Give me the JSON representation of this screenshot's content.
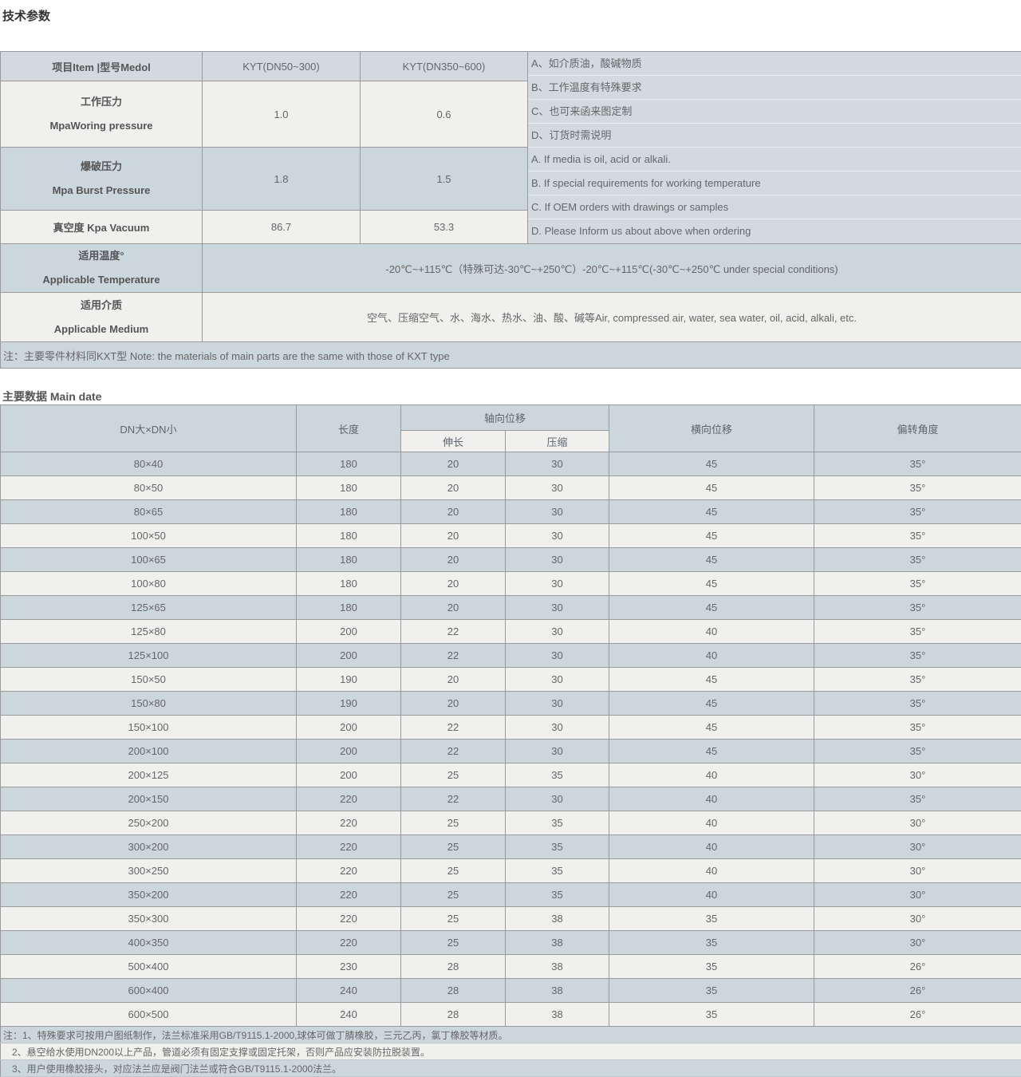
{
  "colors": {
    "row_blue": "#ccd6dd",
    "row_light": "#f0f0ee",
    "header_blue": "#d2dae0",
    "border": "#9a9a9a",
    "text": "#666666",
    "title": "#333333"
  },
  "tech_params": {
    "title": "技术参数",
    "header": {
      "item": "项目Item |型号Medol",
      "model1": "KYT(DN50~300)",
      "model2": "KYT(DN350~600)"
    },
    "rows": [
      {
        "label_cn": "工作压力",
        "label_en": "MpaWoring pressure",
        "v1": "1.0",
        "v2": "0.6"
      },
      {
        "label_cn": "爆破压力",
        "label_en": "Mpa Burst Pressure",
        "v1": "1.8",
        "v2": "1.5"
      },
      {
        "label": "真空度 Kpa Vacuum",
        "v1": "86.7",
        "v2": "53.3"
      }
    ],
    "notes_cn": [
      "A、如介质油，酸碱物质",
      "B、工作温度有特殊要求",
      "C、也可来函来图定制",
      "D、订货时需说明"
    ],
    "notes_en": [
      "A. If media is oil, acid or alkali.",
      "B. If special requirements for working temperature",
      "C. If OEM orders with drawings or samples",
      "D. Please Inform us about above when ordering"
    ],
    "temperature": {
      "label_cn": "适用温度°",
      "label_en": "Applicable Temperature",
      "value": "-20℃~+115℃（特殊可达-30℃~+250℃）-20℃~+115℃(-30℃~+250℃ under special conditions)"
    },
    "medium": {
      "label_cn": "适用介质",
      "label_en": "Applicable Medium",
      "value": "空气、压缩空气、水、海水、热水、油、酸、碱等Air, compressed air, water, sea water, oil, acid, alkali, etc."
    },
    "footer_note": "注：主要零件材料同KXT型 Note: the materials of main parts are the same with those of KXT type"
  },
  "main_data": {
    "title": "主要数据 Main date",
    "headers": {
      "dn": "DN大×DN小",
      "length": "长度",
      "axial": "轴向位移",
      "extend": "伸长",
      "compress": "压缩",
      "lateral": "横向位移",
      "angle": "偏转角度"
    },
    "rows": [
      [
        "80×40",
        "180",
        "20",
        "30",
        "45",
        "35°"
      ],
      [
        "80×50",
        "180",
        "20",
        "30",
        "45",
        "35°"
      ],
      [
        "80×65",
        "180",
        "20",
        "30",
        "45",
        "35°"
      ],
      [
        "100×50",
        "180",
        "20",
        "30",
        "45",
        "35°"
      ],
      [
        "100×65",
        "180",
        "20",
        "30",
        "45",
        "35°"
      ],
      [
        "100×80",
        "180",
        "20",
        "30",
        "45",
        "35°"
      ],
      [
        "125×65",
        "180",
        "20",
        "30",
        "45",
        "35°"
      ],
      [
        "125×80",
        "200",
        "22",
        "30",
        "40",
        "35°"
      ],
      [
        "125×100",
        "200",
        "22",
        "30",
        "40",
        "35°"
      ],
      [
        "150×50",
        "190",
        "20",
        "30",
        "45",
        "35°"
      ],
      [
        "150×80",
        "190",
        "20",
        "30",
        "45",
        "35°"
      ],
      [
        "150×100",
        "200",
        "22",
        "30",
        "45",
        "35°"
      ],
      [
        "200×100",
        "200",
        "22",
        "30",
        "45",
        "35°"
      ],
      [
        "200×125",
        "200",
        "25",
        "35",
        "40",
        "30°"
      ],
      [
        "200×150",
        "220",
        "22",
        "30",
        "40",
        "35°"
      ],
      [
        "250×200",
        "220",
        "25",
        "35",
        "40",
        "30°"
      ],
      [
        "300×200",
        "220",
        "25",
        "35",
        "40",
        "30°"
      ],
      [
        "300×250",
        "220",
        "25",
        "35",
        "40",
        "30°"
      ],
      [
        "350×200",
        "220",
        "25",
        "35",
        "40",
        "30°"
      ],
      [
        "350×300",
        "220",
        "25",
        "38",
        "35",
        "30°"
      ],
      [
        "400×350",
        "220",
        "25",
        "38",
        "35",
        "30°"
      ],
      [
        "500×400",
        "230",
        "28",
        "38",
        "35",
        "26°"
      ],
      [
        "600×400",
        "240",
        "28",
        "38",
        "35",
        "26°"
      ],
      [
        "600×500",
        "240",
        "28",
        "38",
        "35",
        "26°"
      ]
    ],
    "footnotes": [
      "注：1、特殊要求可按用户图纸制作，法兰标准采用GB/T9115.1-2000,球体可做丁腈橡胶，三元乙丙，氯丁橡胶等材质。",
      "2、悬空给水使用DN200以上产品，管道必须有固定支撑或固定托架，否则产品应安装防拉脱装置。",
      "3、用户使用橡胶接头，对应法兰应是阀门法兰或符合GB/T9115.1-2000法兰。"
    ]
  }
}
